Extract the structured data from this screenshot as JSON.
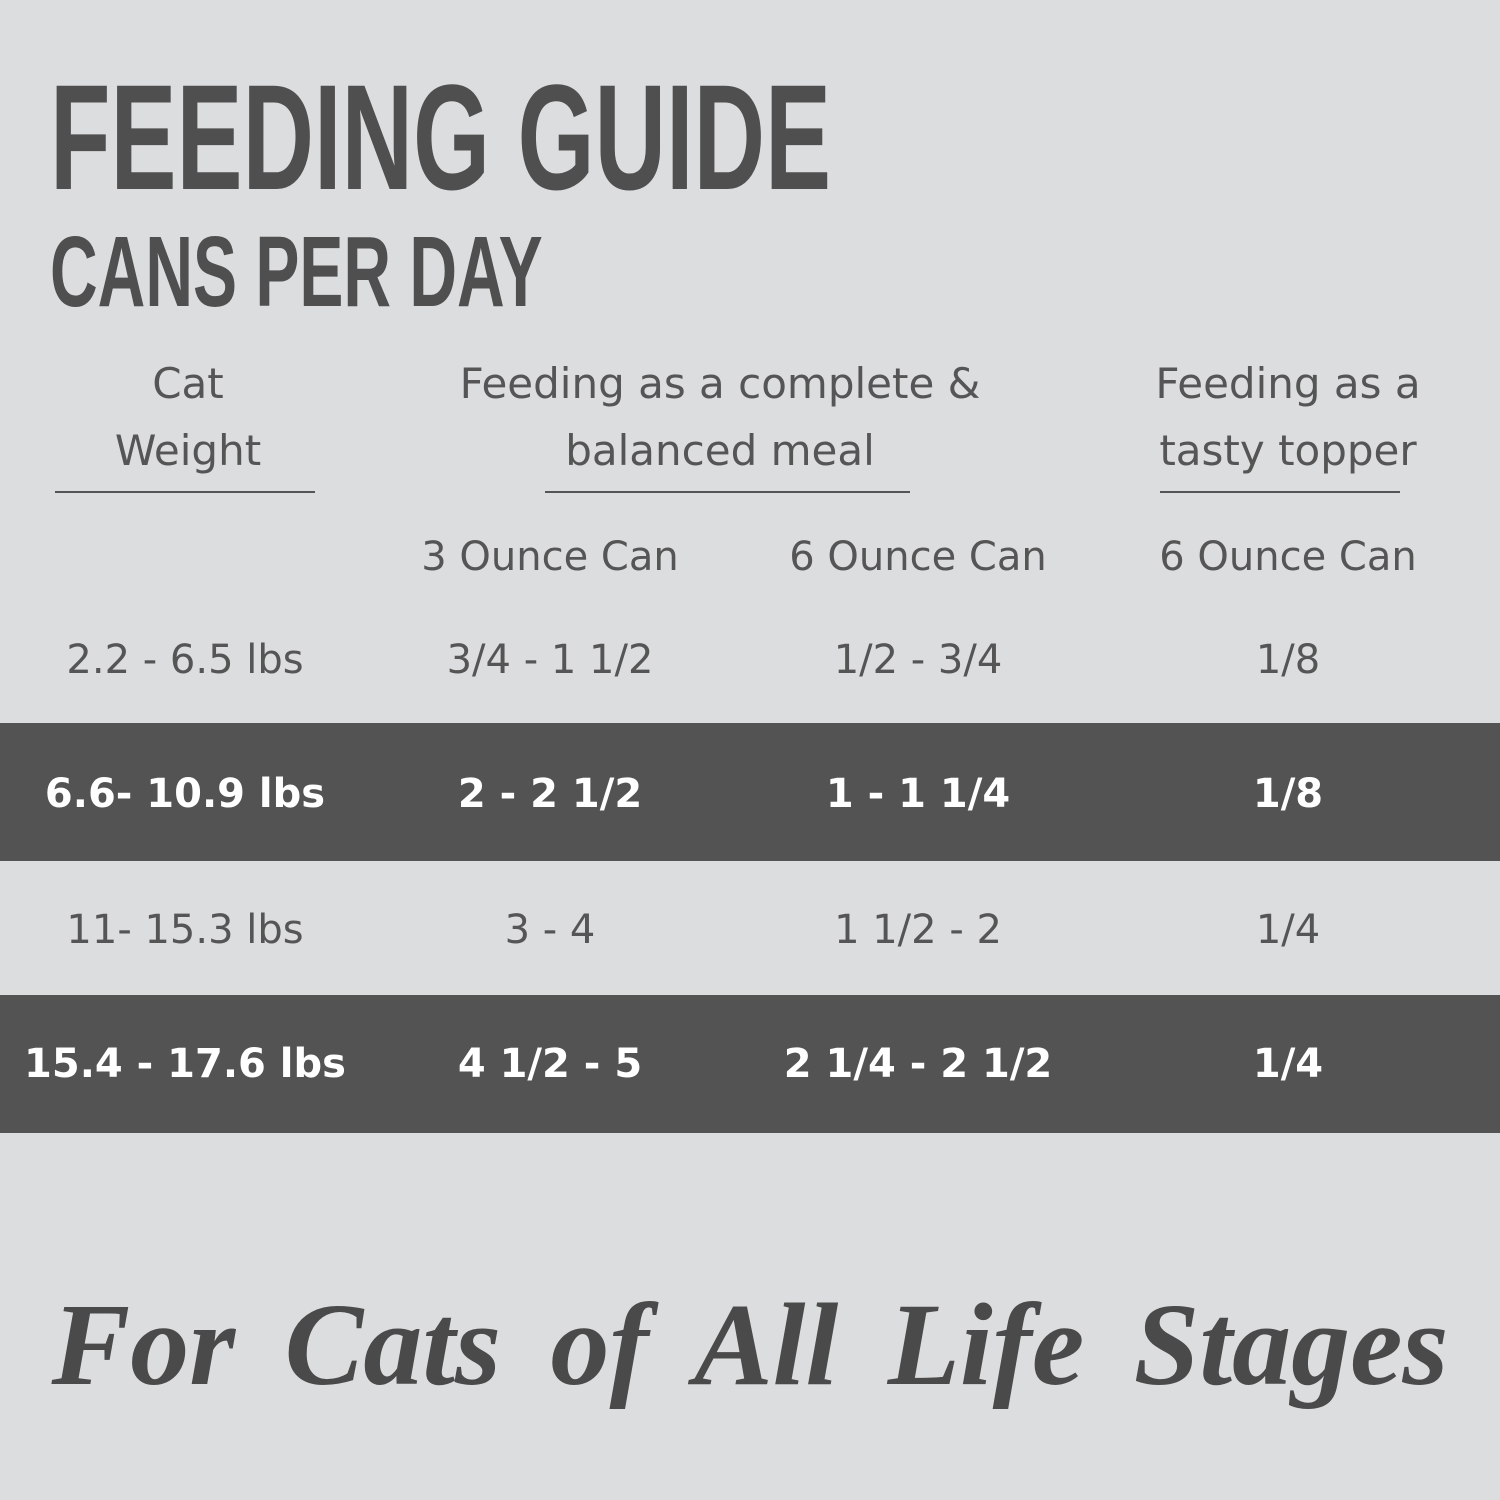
{
  "header": {
    "title": "FEEDING GUIDE",
    "subtitle": "CANS PER DAY"
  },
  "table": {
    "group_headers": [
      [
        "Cat",
        "Weight"
      ],
      [
        "Feeding as a complete &",
        "balanced meal"
      ],
      [
        "Feeding as a",
        "tasty topper"
      ]
    ],
    "sub_headers": [
      "3 Ounce Can",
      "6 Ounce Can",
      "6 Ounce Can"
    ],
    "rows": [
      [
        "2.2 - 6.5 lbs",
        "3/4 - 1 1/2",
        "1/2 - 3/4",
        "1/8"
      ],
      [
        "6.6- 10.9 lbs",
        "2 - 2 1/2",
        "1 - 1 1/4",
        "1/8"
      ],
      [
        "11- 15.3 lbs",
        "3 - 4",
        "1 1/2 - 2",
        "1/4"
      ],
      [
        "15.4 - 17.6 lbs",
        "4 1/2 - 5",
        "2 1/4 - 2 1/2",
        "1/4"
      ]
    ]
  },
  "footer": {
    "tagline": "For Cats of All Life Stages"
  }
}
